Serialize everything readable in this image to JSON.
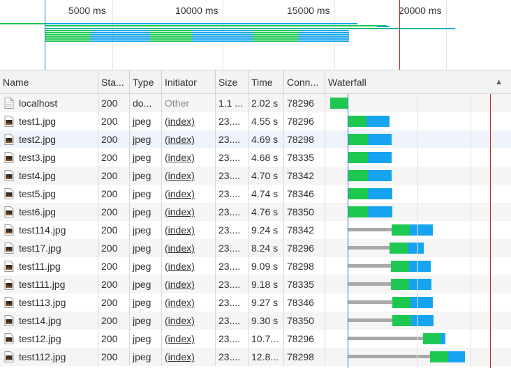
{
  "overview": {
    "ticks": [
      {
        "label": "5000 ms"
      },
      {
        "label": "10000 ms"
      },
      {
        "label": "15000 ms"
      },
      {
        "label": "20000 ms"
      }
    ]
  },
  "columns": {
    "name": "Name",
    "status": "Sta...",
    "type": "Type",
    "initiator": "Initiator",
    "size": "Size",
    "time": "Time",
    "conn": "Conn...",
    "waterfall": "Waterfall"
  },
  "colors": {
    "connect": "#1ec850",
    "download": "#16a4f0",
    "waiting": "#a8a8a8",
    "domcontent": "#1a73e8",
    "load": "#c62828"
  },
  "rows": [
    {
      "name": "localhost",
      "status": "200",
      "type": "do...",
      "initiator": "Other",
      "size": "1.1 ...",
      "time": "2.02 s",
      "conn": "78296",
      "icon": "document-icon"
    },
    {
      "name": "test1.jpg",
      "status": "200",
      "type": "jpeg",
      "initiator": "(index)",
      "size": "23....",
      "time": "4.55 s",
      "conn": "78296",
      "icon": "image-icon"
    },
    {
      "name": "test2.jpg",
      "status": "200",
      "type": "jpeg",
      "initiator": "(index)",
      "size": "23....",
      "time": "4.69 s",
      "conn": "78298",
      "icon": "image-icon"
    },
    {
      "name": "test3.jpg",
      "status": "200",
      "type": "jpeg",
      "initiator": "(index)",
      "size": "23....",
      "time": "4.68 s",
      "conn": "78335",
      "icon": "image-icon"
    },
    {
      "name": "test4.jpg",
      "status": "200",
      "type": "jpeg",
      "initiator": "(index)",
      "size": "23....",
      "time": "4.70 s",
      "conn": "78342",
      "icon": "image-icon"
    },
    {
      "name": "test5.jpg",
      "status": "200",
      "type": "jpeg",
      "initiator": "(index)",
      "size": "23....",
      "time": "4.74 s",
      "conn": "78346",
      "icon": "image-icon"
    },
    {
      "name": "test6.jpg",
      "status": "200",
      "type": "jpeg",
      "initiator": "(index)",
      "size": "23....",
      "time": "4.76 s",
      "conn": "78350",
      "icon": "image-icon"
    },
    {
      "name": "test114.jpg",
      "status": "200",
      "type": "jpeg",
      "initiator": "(index)",
      "size": "23....",
      "time": "9.24 s",
      "conn": "78342",
      "icon": "image-icon"
    },
    {
      "name": "test17.jpg",
      "status": "200",
      "type": "jpeg",
      "initiator": "(index)",
      "size": "23....",
      "time": "8.24 s",
      "conn": "78296",
      "icon": "image-icon"
    },
    {
      "name": "test11.jpg",
      "status": "200",
      "type": "jpeg",
      "initiator": "(index)",
      "size": "23....",
      "time": "9.09 s",
      "conn": "78298",
      "icon": "image-icon"
    },
    {
      "name": "test111.jpg",
      "status": "200",
      "type": "jpeg",
      "initiator": "(index)",
      "size": "23....",
      "time": "9.18 s",
      "conn": "78335",
      "icon": "image-icon"
    },
    {
      "name": "test113.jpg",
      "status": "200",
      "type": "jpeg",
      "initiator": "(index)",
      "size": "23....",
      "time": "9.27 s",
      "conn": "78346",
      "icon": "image-icon"
    },
    {
      "name": "test14.jpg",
      "status": "200",
      "type": "jpeg",
      "initiator": "(index)",
      "size": "23....",
      "time": "9.30 s",
      "conn": "78350",
      "icon": "image-icon"
    },
    {
      "name": "test12.jpg",
      "status": "200",
      "type": "jpeg",
      "initiator": "(index)",
      "size": "23....",
      "time": "10.7...",
      "conn": "78296",
      "icon": "image-icon"
    },
    {
      "name": "test112.jpg",
      "status": "200",
      "type": "jpeg",
      "initiator": "(index)",
      "size": "23....",
      "time": "12.8...",
      "conn": "78298",
      "icon": "image-icon"
    }
  ]
}
